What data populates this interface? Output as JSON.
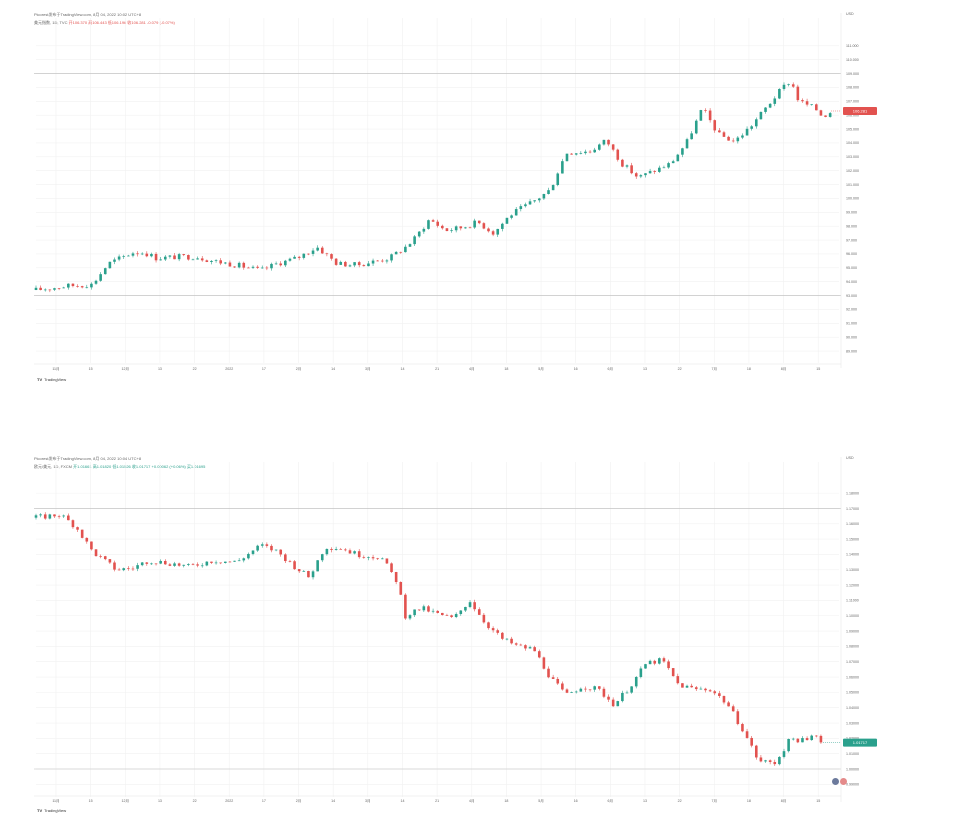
{
  "chart_data": [
    {
      "type": "candlestick",
      "panel": "top",
      "header_published": "Picorest发布于TradingView.com, 8月 04, 2022 10:02 UTC+8",
      "header_symbol": "美元指数, 1D, TVC",
      "header_ohlc": [
        "开106.370",
        "高106.443",
        "低106.196",
        "收106.281",
        "-0.079 (-0.07%)"
      ],
      "ohlc_color": "#e2524f",
      "ylabel": "USD",
      "yticks": [
        111.0,
        110.0,
        109.0,
        108.0,
        107.0,
        106.0,
        105.0,
        104.0,
        103.0,
        102.0,
        101.0,
        100.0,
        99.0,
        98.0,
        97.0,
        96.0,
        95.0,
        94.0,
        93.0,
        92.0,
        91.0,
        90.0,
        89.0
      ],
      "ylim": [
        88.5,
        111.2
      ],
      "hlines": [
        109.0,
        93.0
      ],
      "price_tag": "106.281",
      "xticks": [
        "11月",
        "15",
        "12月",
        "13",
        "22",
        "2022",
        "17",
        "2月",
        "14",
        "3月",
        "14",
        "21",
        "4月",
        "18",
        "5月",
        "16",
        "6月",
        "13",
        "22",
        "7月",
        "18",
        "8月",
        "15"
      ],
      "path_color": "#e2524f",
      "path": [
        [
          0,
          93.4
        ],
        [
          8,
          93.7
        ],
        [
          14,
          93.8
        ],
        [
          18,
          95.3
        ],
        [
          24,
          96.1
        ],
        [
          27,
          96.1
        ],
        [
          30,
          95.7
        ],
        [
          36,
          95.8
        ],
        [
          40,
          95.8
        ],
        [
          44,
          95.5
        ],
        [
          50,
          95.2
        ],
        [
          56,
          94.8
        ],
        [
          60,
          95.3
        ],
        [
          65,
          95.7
        ],
        [
          70,
          96.5
        ],
        [
          75,
          95.3
        ],
        [
          80,
          95.2
        ],
        [
          88,
          95.7
        ],
        [
          92,
          96.5
        ],
        [
          94,
          97.0
        ],
        [
          98,
          98.5
        ],
        [
          102,
          97.7
        ],
        [
          106,
          97.9
        ],
        [
          110,
          98.3
        ],
        [
          114,
          97.5
        ],
        [
          118,
          98.8
        ],
        [
          124,
          99.8
        ],
        [
          128,
          100.6
        ],
        [
          132,
          103.3
        ],
        [
          138,
          103.4
        ],
        [
          142,
          104.2
        ],
        [
          146,
          102.5
        ],
        [
          150,
          101.5
        ],
        [
          154,
          102.0
        ],
        [
          158,
          102.5
        ],
        [
          162,
          104.0
        ],
        [
          166,
          106.5
        ],
        [
          170,
          104.6
        ],
        [
          174,
          104.1
        ],
        [
          178,
          105.2
        ],
        [
          182,
          106.6
        ],
        [
          186,
          108.0
        ],
        [
          188,
          108.5
        ],
        [
          190,
          107.0
        ],
        [
          194,
          106.5
        ],
        [
          196,
          105.9
        ],
        [
          198,
          106.3
        ]
      ],
      "x_range": [
        0,
        200
      ]
    },
    {
      "type": "candlestick",
      "panel": "bottom",
      "header_published": "Picorest发布于TradingView.com, 8月 04, 2022 10:04 UTC+8",
      "header_symbol": "欧元/美元, 1D, FXCM",
      "header_ohlc": [
        "开1.01661",
        "高1.01820",
        "低1.01526",
        "收1.01717",
        "+0.00062 (+0.06%)",
        "买1.01695"
      ],
      "ohlc_color": "#2aa08c",
      "ylabel": "USD",
      "yticks": [
        1.18,
        1.17,
        1.16,
        1.15,
        1.14,
        1.13,
        1.12,
        1.11,
        1.1,
        1.09,
        1.08,
        1.07,
        1.06,
        1.05,
        1.04,
        1.03,
        1.02,
        1.01,
        1.0,
        0.99
      ],
      "ylim": [
        0.985,
        1.184
      ],
      "hlines": [
        1.17,
        1.0
      ],
      "price_tag": "1.01717",
      "xticks": [
        "11月",
        "15",
        "12月",
        "13",
        "22",
        "2022",
        "17",
        "2月",
        "14",
        "3月",
        "14",
        "21",
        "4月",
        "18",
        "5月",
        "16",
        "6月",
        "13",
        "22",
        "7月",
        "18",
        "8月",
        "15"
      ],
      "path_color": "#2aa08c",
      "path": [
        [
          0,
          1.164
        ],
        [
          6,
          1.166
        ],
        [
          10,
          1.158
        ],
        [
          14,
          1.142
        ],
        [
          20,
          1.13
        ],
        [
          24,
          1.131
        ],
        [
          28,
          1.136
        ],
        [
          34,
          1.134
        ],
        [
          38,
          1.132
        ],
        [
          44,
          1.136
        ],
        [
          50,
          1.135
        ],
        [
          56,
          1.146
        ],
        [
          60,
          1.142
        ],
        [
          64,
          1.133
        ],
        [
          68,
          1.125
        ],
        [
          72,
          1.145
        ],
        [
          76,
          1.144
        ],
        [
          80,
          1.14
        ],
        [
          86,
          1.138
        ],
        [
          90,
          1.122
        ],
        [
          92,
          1.1
        ],
        [
          96,
          1.105
        ],
        [
          100,
          1.101
        ],
        [
          104,
          1.098
        ],
        [
          108,
          1.11
        ],
        [
          112,
          1.095
        ],
        [
          116,
          1.085
        ],
        [
          120,
          1.08
        ],
        [
          124,
          1.078
        ],
        [
          128,
          1.06
        ],
        [
          132,
          1.048
        ],
        [
          136,
          1.054
        ],
        [
          140,
          1.052
        ],
        [
          144,
          1.042
        ],
        [
          148,
          1.054
        ],
        [
          152,
          1.069
        ],
        [
          156,
          1.071
        ],
        [
          160,
          1.055
        ],
        [
          164,
          1.052
        ],
        [
          168,
          1.052
        ],
        [
          172,
          1.043
        ],
        [
          176,
          1.026
        ],
        [
          180,
          1.005
        ],
        [
          184,
          1.004
        ],
        [
          188,
          1.02
        ],
        [
          192,
          1.018
        ],
        [
          194,
          1.023
        ],
        [
          196,
          1.0172
        ]
      ],
      "x_range": [
        0,
        200
      ]
    }
  ],
  "branding": "TradingView",
  "colors": {
    "up": "#2aa08c",
    "down": "#e2524f",
    "grid": "#f1f1f1",
    "axis": "#888888"
  }
}
